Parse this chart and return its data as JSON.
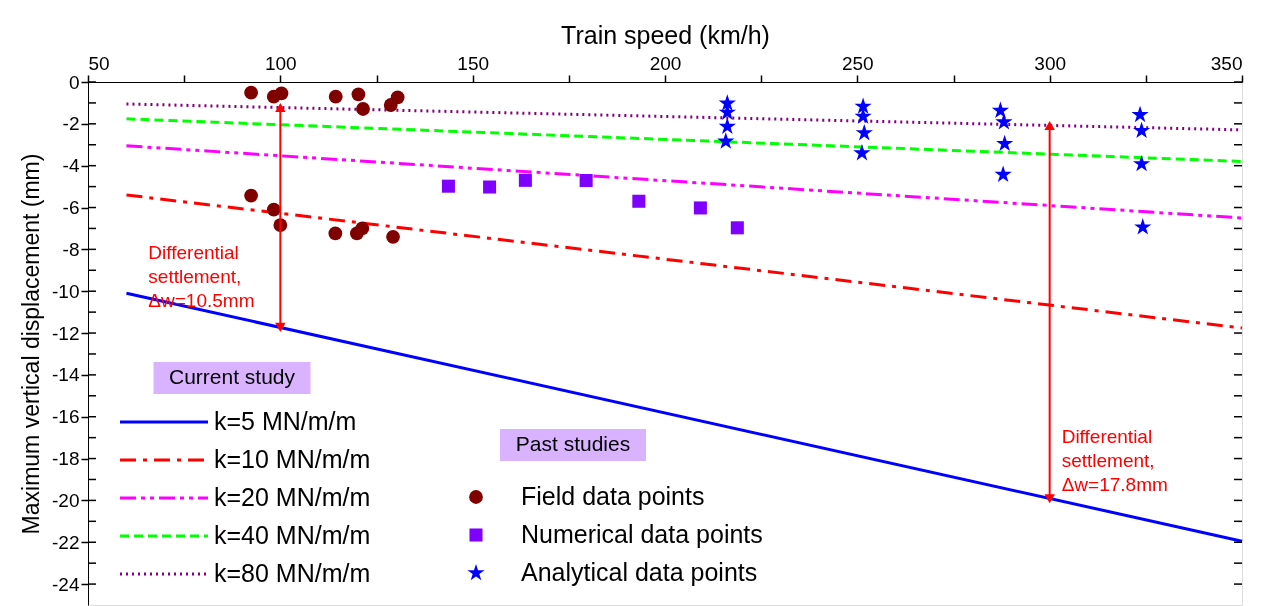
{
  "chart_data": {
    "type": "line",
    "xlabel": "Train speed (km/h)",
    "ylabel": "Maximum vertical displacement (mm)",
    "xlim": [
      50,
      350
    ],
    "ylim": [
      -25,
      0
    ],
    "xticks": [
      50,
      {
        "value": 75,
        "label": null
      },
      100,
      {
        "value": 125,
        "label": null
      },
      150,
      {
        "value": 175,
        "label": null
      },
      200,
      {
        "value": 225,
        "label": null
      },
      250,
      {
        "value": 275,
        "label": null
      },
      300,
      {
        "value": 325,
        "label": null
      },
      350
    ],
    "yticks": [
      0,
      {
        "value": -1,
        "label": null
      },
      -2,
      {
        "value": -3,
        "label": null
      },
      -4,
      {
        "value": -5,
        "label": null
      },
      -6,
      {
        "value": -7,
        "label": null
      },
      -8,
      {
        "value": -9,
        "label": null
      },
      -10,
      {
        "value": -11,
        "label": null
      },
      -12,
      {
        "value": -13,
        "label": null
      },
      -14,
      {
        "value": -15,
        "label": null
      },
      -16,
      {
        "value": -17,
        "label": null
      },
      -18,
      {
        "value": -19,
        "label": null
      },
      -20,
      {
        "value": -21,
        "label": null
      },
      -22,
      {
        "value": -23,
        "label": null
      },
      -24
    ],
    "grid": false,
    "legend": "bottom left",
    "series": [
      {
        "name": "k=5 MN/m/m",
        "type": "line",
        "marker": "none",
        "color": "#0000ff",
        "line_style": "solid",
        "x": [
          60,
          350
        ],
        "values": [
          -10.1,
          -21.95
        ]
      },
      {
        "name": "k=10 MN/m/m",
        "type": "line",
        "marker": "none",
        "color": "#ff0000",
        "line_style": "dashdot",
        "x": [
          60,
          350
        ],
        "values": [
          -5.4,
          -11.76
        ]
      },
      {
        "name": "k=20 MN/m/m",
        "type": "line",
        "marker": "none",
        "color": "#ff00ff",
        "line_style": "dashdotdot",
        "x": [
          60,
          350
        ],
        "values": [
          -3.05,
          -6.5
        ]
      },
      {
        "name": "k=40 MN/m/m",
        "type": "line",
        "marker": "none",
        "color": "#00ff00",
        "line_style": "dashed",
        "x": [
          60,
          350
        ],
        "values": [
          -1.76,
          -3.8
        ]
      },
      {
        "name": "k=80 MN/m/m",
        "type": "line",
        "marker": "none",
        "color": "#800080",
        "line_style": "dotted",
        "x": [
          60,
          350
        ],
        "values": [
          -1.05,
          -2.29
        ]
      },
      {
        "name": "Field data points",
        "type": "scatter",
        "color": "#800000",
        "marker": "circle",
        "x": [
          92.4,
          98.3,
          100.3,
          114.4,
          120.3,
          121.5,
          128.7,
          130.5,
          92.4,
          98.3,
          100,
          114.3,
          119.9,
          121.3,
          129.3
        ],
        "values": [
          -0.51,
          -0.7,
          -0.54,
          -0.7,
          -0.59,
          -1.29,
          -1.1,
          -0.73,
          -5.43,
          -6.1,
          -6.84,
          -7.24,
          -7.24,
          -7.0,
          -7.4
        ]
      },
      {
        "name": "Numerical data points",
        "type": "scatter",
        "color": "#8000ff",
        "marker": "square",
        "x": [
          143.7,
          154.4,
          163.7,
          179.5,
          193.2,
          209.2,
          218.8
        ],
        "values": [
          -4.98,
          -5.02,
          -4.7,
          -4.71,
          -5.7,
          -6.02,
          -6.97
        ]
      },
      {
        "name": "Analytical data points",
        "type": "scatter",
        "color": "#0000ff",
        "marker": "star",
        "x": [
          216.2,
          216.2,
          216.2,
          215.8,
          251.5,
          251.5,
          251.8,
          251.2,
          287.2,
          288.1,
          288.3,
          287.9,
          323.5,
          323.9,
          323.9,
          324.2
        ],
        "values": [
          -1.02,
          -1.46,
          -2.13,
          -2.84,
          -1.17,
          -1.65,
          -2.44,
          -3.4,
          -1.37,
          -1.92,
          -2.95,
          -4.43,
          -1.57,
          -2.33,
          -3.92,
          -6.94
        ]
      }
    ],
    "annotations": [
      "Current study",
      "Past studies",
      {
        "text": "Differential\nsettlement,\nΔw=10.5mm",
        "x": 100,
        "y": -11.73
      },
      {
        "text": "Differential\nsettlement,\nΔw=17.8mm",
        "x": 300,
        "y": -19.92
      }
    ]
  }
}
